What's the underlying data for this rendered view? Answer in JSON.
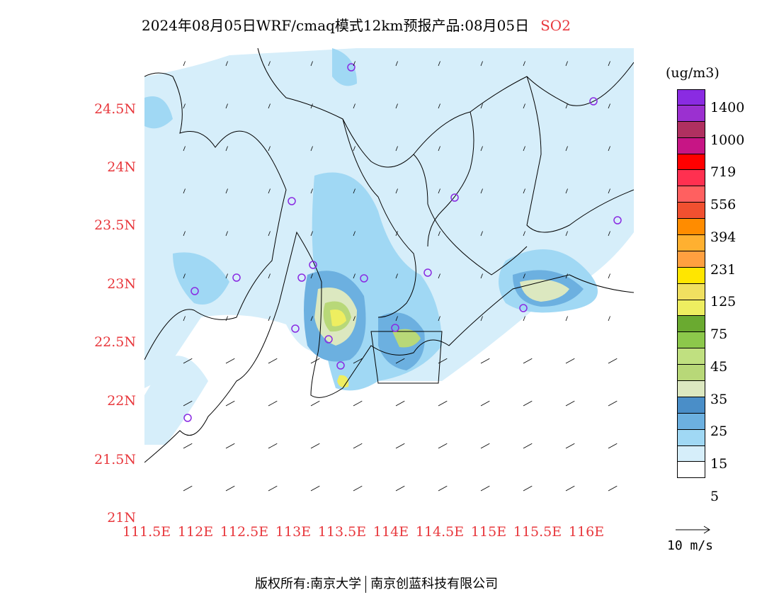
{
  "title": {
    "text": "2024年08月05日WRF/cmaq模式12km预报产品:08月05日",
    "species": "SO2"
  },
  "axes": {
    "y_labels": [
      "24.5N",
      "24N",
      "23.5N",
      "23N",
      "22.5N",
      "22N",
      "21.5N",
      "21N"
    ],
    "x_labels": [
      "111.5E",
      "112E",
      "112.5E",
      "113E",
      "113.5E",
      "114E",
      "114.5E",
      "115E",
      "115.5E",
      "116E"
    ]
  },
  "legend": {
    "unit": "(ug/m3)",
    "levels": [
      "1400",
      "1000",
      "719",
      "556",
      "394",
      "231",
      "125",
      "75",
      "45",
      "35",
      "25",
      "15",
      "5"
    ],
    "colors": [
      "#8a2be2",
      "#9b30d0",
      "#b03060",
      "#c71585",
      "#ff0000",
      "#ff3050",
      "#ff6060",
      "#f05030",
      "#ff8c00",
      "#ffb030",
      "#ffa040",
      "#ffe600",
      "#f0e060",
      "#eeee60",
      "#6aaa30",
      "#8cc84b",
      "#c0e080",
      "#b8d878",
      "#dce8c0",
      "#4a8ec8",
      "#6cb0e0",
      "#a0d8f4",
      "#d6eefa",
      "#ffffff"
    ]
  },
  "wind_reference": {
    "label": "10 m/s"
  },
  "footer": {
    "left": "版权所有:南京大学",
    "right": "南京创蓝科技有限公司"
  },
  "map_colors": {
    "level_5": "#d6eefa",
    "level_15": "#a0d8f4",
    "level_25": "#6cb0e0",
    "level_35": "#4a8ec8",
    "level_45": "#dce8c0",
    "level_75": "#b8d878",
    "level_125": "#8cc84b",
    "level_231": "#eeee60",
    "station": "#8a2be2"
  }
}
